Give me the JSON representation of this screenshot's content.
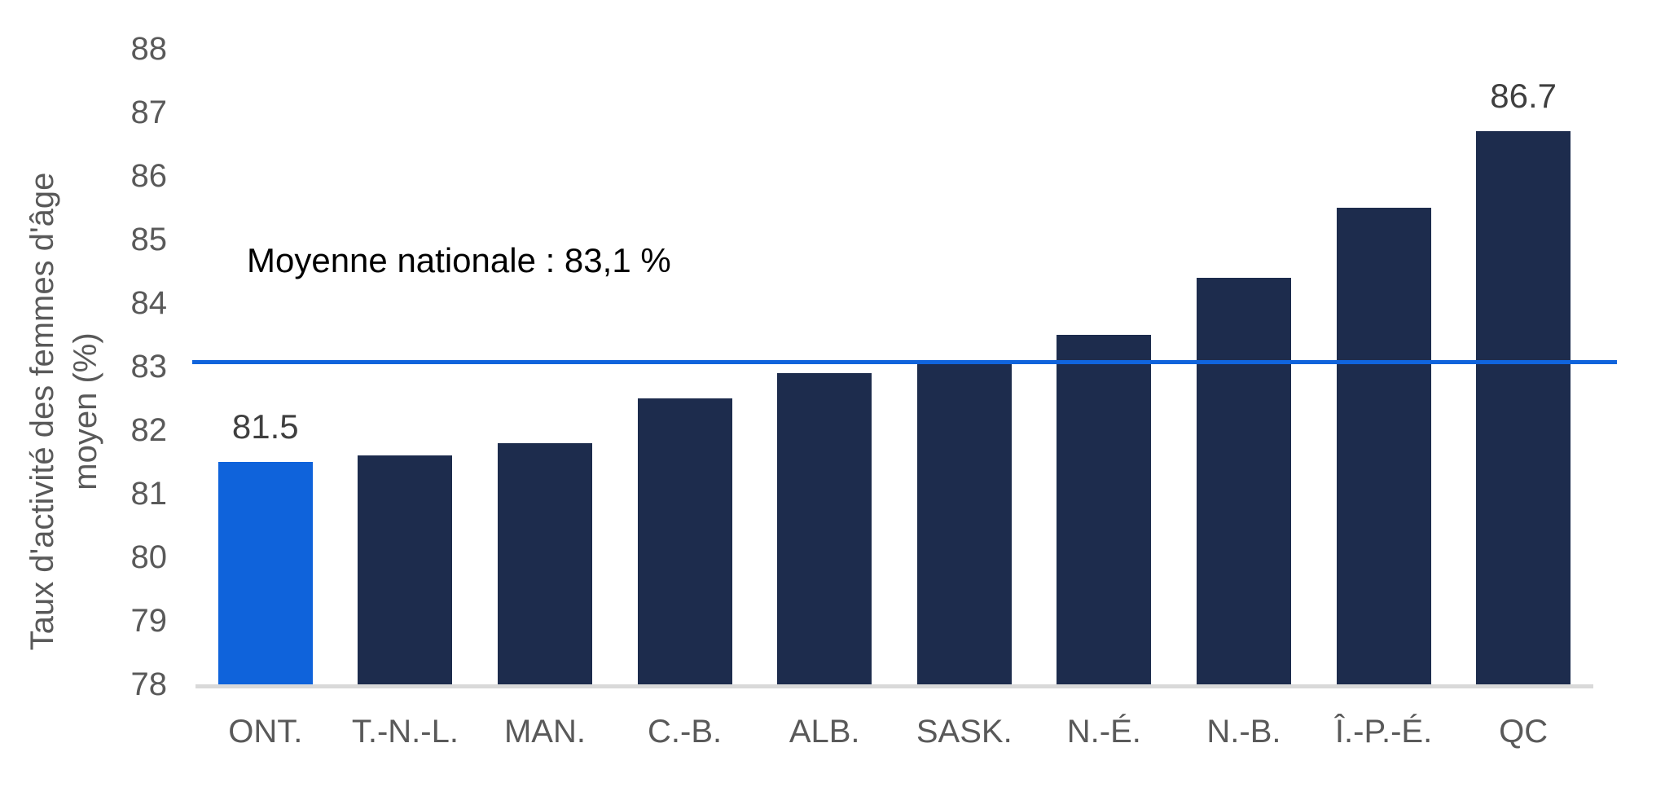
{
  "chart_data": {
    "type": "bar",
    "title": "",
    "ylabel": "Taux d'activité des femmes d'âge moyen (%)",
    "ylabel_lines": [
      "Taux d'activité des femmes d'âge",
      "moyen (%)"
    ],
    "xlabel": "",
    "ylim": [
      78,
      88
    ],
    "yticks": [
      88,
      87,
      86,
      85,
      84,
      83,
      82,
      81,
      80,
      79,
      78
    ],
    "categories": [
      "ONT.",
      "T.-N.-L.",
      "MAN.",
      "C.-B.",
      "ALB.",
      "SASK.",
      "N.-É.",
      "N.-B.",
      "Î.-P.-É.",
      "QC"
    ],
    "values": [
      81.5,
      81.6,
      81.8,
      82.5,
      82.9,
      83.1,
      83.5,
      84.4,
      85.5,
      86.7
    ],
    "value_labels": [
      "81.5",
      null,
      null,
      null,
      null,
      null,
      null,
      null,
      null,
      "86.7"
    ],
    "highlight_category": "ONT.",
    "reference_line": {
      "value": 83.1,
      "label": "Moyenne nationale : 83,1 %",
      "color": "#1064DC"
    },
    "colors": {
      "default_bar": "#1D2C4D",
      "highlight_bar": "#0F63DB",
      "axis_line": "#D9D9D9",
      "tick_text": "#595959",
      "value_label_text": "#3F3F3F",
      "annotation_text": "#000000"
    },
    "grid": false,
    "legend": false
  }
}
